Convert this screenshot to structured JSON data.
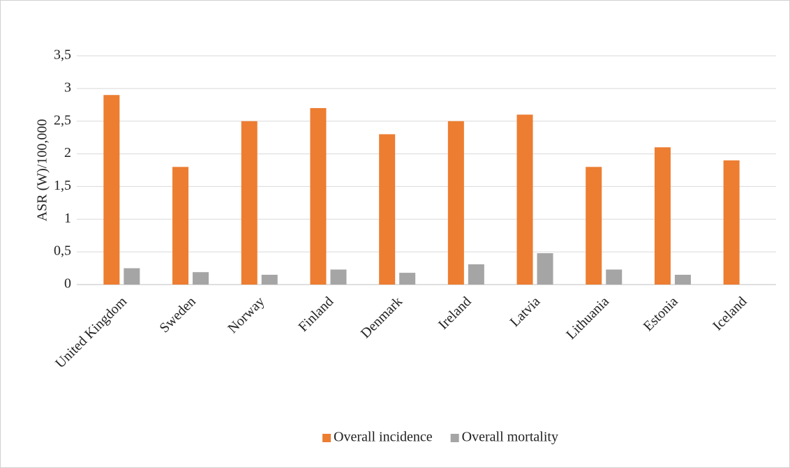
{
  "chart_data": {
    "type": "bar",
    "y_label": "ASR (W)/100,000",
    "categories": [
      "United Kingdom",
      "Sweden",
      "Norway",
      "Finland",
      "Denmark",
      "Ireland",
      "Latvia",
      "Lithuania",
      "Estonia",
      "Iceland"
    ],
    "series": [
      {
        "name": "Overall incidence",
        "color": "#ed7d31",
        "values": [
          2.9,
          1.8,
          2.5,
          2.7,
          2.3,
          2.5,
          2.6,
          1.8,
          2.1,
          1.9
        ]
      },
      {
        "name": "Overall mortality",
        "color": "#a5a5a5",
        "values": [
          0.25,
          0.19,
          0.15,
          0.23,
          0.18,
          0.31,
          0.48,
          0.23,
          0.15,
          0
        ]
      }
    ],
    "ylim": [
      0,
      3.5
    ],
    "yticks": [
      0,
      {
        "value": 0.5,
        "label": "0,5"
      },
      1,
      {
        "value": 1.5,
        "label": "1,5"
      },
      2,
      {
        "value": 2.5,
        "label": "2,5"
      },
      3,
      {
        "value": 3.5,
        "label": "3,5"
      }
    ],
    "grid": true
  }
}
